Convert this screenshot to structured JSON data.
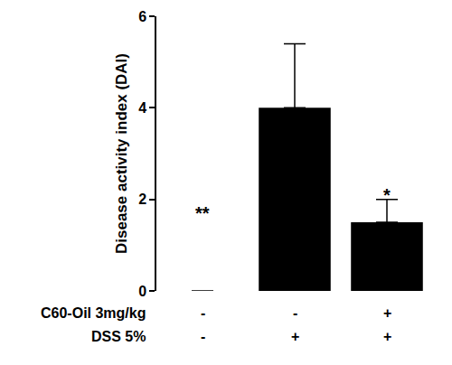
{
  "chart_data": {
    "type": "bar",
    "y_label": "Disease activity index (DAI)",
    "categories": [
      null,
      null,
      null
    ],
    "values": [
      0,
      4.0,
      1.5
    ],
    "errors": [
      0,
      1.4,
      0.5
    ],
    "color": "#000000",
    "ylim": [
      0,
      6
    ],
    "yticks": [
      0,
      2,
      4,
      6
    ],
    "grid": false,
    "factors": [
      {
        "label": "C60-Oil 3mg/kg",
        "levels": [
          "-",
          "-",
          "+"
        ]
      },
      {
        "label": "DSS 5%",
        "levels": [
          "-",
          "+",
          "+"
        ]
      }
    ],
    "annotations": [
      {
        "text": "**",
        "category": 0,
        "y": 1.7
      },
      {
        "text": "*",
        "category": 2,
        "y": 2.1
      }
    ]
  }
}
